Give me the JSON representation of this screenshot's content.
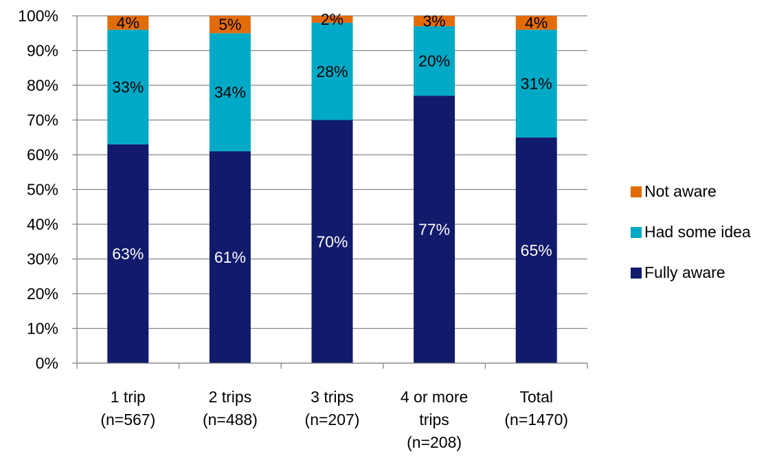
{
  "chart_data": {
    "type": "bar",
    "stacked": true,
    "categories": [
      [
        "1 trip",
        "(n=567)"
      ],
      [
        "2 trips",
        "(n=488)"
      ],
      [
        "3 trips",
        "(n=207)"
      ],
      [
        "4 or more",
        "trips",
        "(n=208)"
      ],
      [
        "Total",
        "(n=1470)"
      ]
    ],
    "series": [
      {
        "name": "Fully aware",
        "color": "#111a6b",
        "label_color": "#ffffff",
        "values": [
          63,
          61,
          70,
          77,
          65
        ],
        "labels": [
          "63%",
          "61%",
          "70%",
          "77%",
          "65%"
        ]
      },
      {
        "name": "Had some idea",
        "color": "#00a9c6",
        "label_color": "#000000",
        "values": [
          33,
          34,
          28,
          20,
          31
        ],
        "labels": [
          "33%",
          "34%",
          "28%",
          "20%",
          "31%"
        ]
      },
      {
        "name": "Not aware",
        "color": "#e36c0a",
        "label_color": "#000000",
        "values": [
          4,
          5,
          2,
          3,
          4
        ],
        "labels": [
          "4%",
          "5%",
          "2%",
          "3%",
          "4%"
        ]
      }
    ],
    "ylim": [
      0,
      100
    ],
    "y_ticks": [
      "0%",
      "10%",
      "20%",
      "30%",
      "40%",
      "50%",
      "60%",
      "70%",
      "80%",
      "90%",
      "100%"
    ],
    "grid": true,
    "legend_position": "right",
    "legend_order": [
      "Not aware",
      "Had some idea",
      "Fully aware"
    ],
    "title": "",
    "xlabel": "",
    "ylabel": ""
  }
}
